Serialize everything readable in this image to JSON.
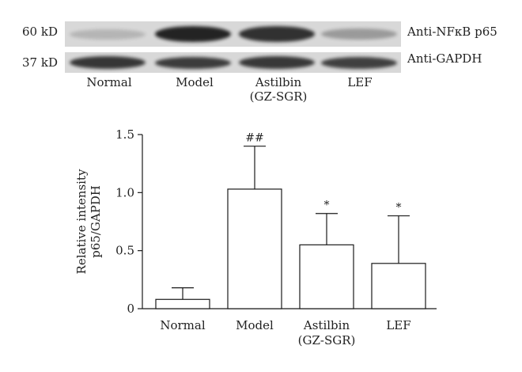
{
  "blot": {
    "markers": [
      {
        "label": "60 kD",
        "antibody": "Anti-NFκB p65",
        "intensities": [
          0.18,
          0.95,
          0.88,
          0.32
        ]
      },
      {
        "label": "37 kD",
        "antibody": "Anti-GAPDH",
        "intensities": [
          0.85,
          0.82,
          0.84,
          0.8
        ]
      }
    ],
    "lanes": [
      {
        "line1": "Normal",
        "line2": ""
      },
      {
        "line1": "Model",
        "line2": ""
      },
      {
        "line1": "Astilbin",
        "line2": "(GZ-SGR)"
      },
      {
        "line1": "LEF",
        "line2": ""
      }
    ],
    "band_color": "#1a1a1a",
    "background": "#d8d8d8"
  },
  "chart_data": {
    "type": "bar",
    "categories": [
      "Normal",
      "Model",
      "Astilbin\n(GZ-SGR)",
      "LEF"
    ],
    "category_lines": [
      [
        "Normal"
      ],
      [
        "Model"
      ],
      [
        "Astilbin",
        "(GZ-SGR)"
      ],
      [
        "LEF"
      ]
    ],
    "values": [
      0.08,
      1.03,
      0.55,
      0.39
    ],
    "errors": [
      0.1,
      0.37,
      0.27,
      0.41
    ],
    "annotations": [
      "",
      "##",
      "*",
      "*"
    ],
    "ylabel_lines": [
      "Relative intensity",
      "p65/GAPDH"
    ],
    "ylim": [
      0,
      1.5
    ],
    "yticks": [
      0,
      0.5,
      1.0,
      1.5
    ],
    "ytick_labels": [
      "0",
      "0.5",
      "1.0",
      "1.5"
    ],
    "bar_fill": "#ffffff",
    "bar_stroke": "#1a1a1a"
  }
}
